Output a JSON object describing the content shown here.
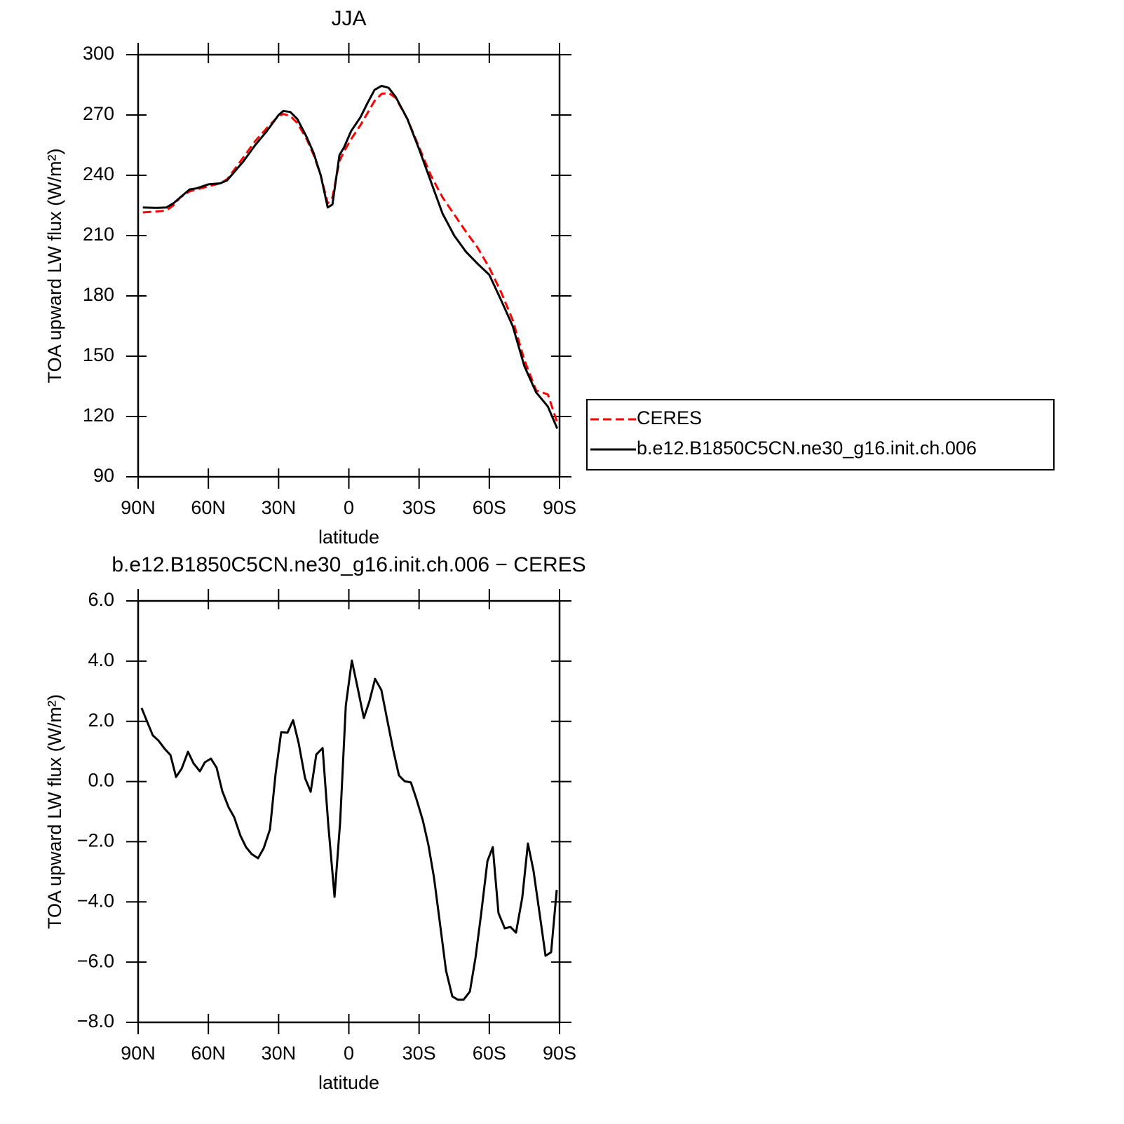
{
  "chart_data": [
    {
      "type": "line",
      "title": "JJA",
      "xlabel": "latitude",
      "ylabel": "TOA upward LW flux (W/m²)",
      "x": [
        88,
        82,
        78,
        75,
        72,
        68,
        65,
        60,
        55,
        52,
        45,
        40,
        35,
        30,
        28,
        25,
        22,
        18,
        15,
        12,
        9,
        7,
        4,
        2,
        -1,
        -5,
        -8,
        -11,
        -14,
        -17,
        -20,
        -25,
        -30,
        -35,
        -40,
        -45,
        -50,
        -55,
        -60,
        -65,
        -70,
        -75,
        -80,
        -85,
        -89
      ],
      "series": [
        {
          "name": "CERES",
          "color": "#ff0000",
          "linestyle": "dashed",
          "values": [
            221.5,
            222,
            222.5,
            225,
            229,
            232,
            233,
            234.5,
            236,
            238,
            249,
            257,
            263.5,
            269.5,
            270.5,
            269.5,
            266,
            258,
            250,
            240,
            226,
            229,
            247,
            252,
            258,
            265,
            271,
            277,
            280.5,
            281,
            278.5,
            268,
            254,
            240,
            229,
            220.5,
            212,
            204,
            194,
            182,
            168,
            148,
            133,
            131,
            117
          ]
        },
        {
          "name": "b.e12.B1850C5CN.ne30_g16.init.ch.006",
          "color": "#000000",
          "linestyle": "solid",
          "values": [
            224,
            223.8,
            224,
            226,
            229,
            233,
            233.5,
            235.5,
            236,
            237.5,
            247,
            255,
            262,
            270,
            272,
            271.5,
            268,
            259,
            251,
            240,
            224,
            225.5,
            250,
            254,
            262,
            269,
            276,
            282.5,
            284.5,
            283.5,
            279,
            268,
            253,
            237,
            221,
            210,
            202,
            196,
            190.5,
            178,
            165,
            145,
            132,
            125,
            114
          ]
        }
      ],
      "xlim": [
        90,
        -90
      ],
      "xticks": [
        {
          "value": 90,
          "label": "90N"
        },
        {
          "value": 60,
          "label": "60N"
        },
        {
          "value": 30,
          "label": "30N"
        },
        0,
        {
          "value": -30,
          "label": "30S"
        },
        {
          "value": -60,
          "label": "60S"
        },
        {
          "value": -90,
          "label": "90S"
        }
      ],
      "ylim": [
        90,
        300
      ],
      "yticks": [
        90,
        120,
        150,
        180,
        210,
        240,
        270,
        300
      ],
      "legend": "right"
    },
    {
      "type": "line",
      "title": "b.e12.B1850C5CN.ne30_g16.init.ch.006 − CERES",
      "xlabel": "latitude",
      "ylabel": "TOA upward LW flux (W/m²)",
      "x": [
        88.5,
        85.8,
        83.7,
        81.3,
        78.6,
        76.2,
        73.8,
        71.4,
        68.7,
        66.3,
        63.6,
        61.5,
        58.9,
        56.5,
        54.1,
        51.4,
        49.0,
        46.3,
        43.9,
        41.5,
        38.8,
        36.4,
        33.7,
        31.3,
        28.9,
        26.2,
        23.8,
        21.4,
        18.7,
        16.3,
        13.9,
        11.2,
        8.8,
        6.1,
        3.7,
        1.3,
        -1.3,
        -3.7,
        -6.4,
        -8.8,
        -11.2,
        -13.9,
        -16.3,
        -19.0,
        -21.4,
        -23.8,
        -26.5,
        -28.9,
        -31.6,
        -34.0,
        -36.4,
        -39.1,
        -41.5,
        -44.2,
        -46.6,
        -49.0,
        -51.7,
        -54.1,
        -56.5,
        -59.2,
        -61.5,
        -63.9,
        -66.6,
        -69.0,
        -71.4,
        -74.1,
        -76.5,
        -78.9,
        -81.6,
        -84.0,
        -86.4,
        -88.8
      ],
      "series": [
        {
          "color": "#000000",
          "linestyle": "solid",
          "values": [
            2.44,
            1.92,
            1.53,
            1.36,
            1.08,
            0.88,
            0.15,
            0.43,
            0.99,
            0.6,
            0.34,
            0.64,
            0.76,
            0.46,
            -0.31,
            -0.85,
            -1.18,
            -1.8,
            -2.18,
            -2.41,
            -2.55,
            -2.22,
            -1.59,
            0.25,
            1.64,
            1.62,
            2.04,
            1.27,
            0.11,
            -0.34,
            0.9,
            1.11,
            -1.41,
            -3.83,
            -1.34,
            2.53,
            4.02,
            3.13,
            2.11,
            2.67,
            3.41,
            3.04,
            2.09,
            1.04,
            0.2,
            0.01,
            -0.03,
            -0.59,
            -1.29,
            -2.11,
            -3.2,
            -4.83,
            -6.28,
            -7.14,
            -7.25,
            -7.25,
            -6.98,
            -5.86,
            -4.41,
            -2.64,
            -2.18,
            -4.37,
            -4.88,
            -4.83,
            -5.02,
            -3.85,
            -2.06,
            -2.97,
            -4.46,
            -5.79,
            -5.67,
            -3.6
          ]
        }
      ],
      "xlim": [
        90,
        -90
      ],
      "xticks": [
        {
          "value": 90,
          "label": "90N"
        },
        {
          "value": 60,
          "label": "60N"
        },
        {
          "value": 30,
          "label": "30N"
        },
        0,
        {
          "value": -30,
          "label": "30S"
        },
        {
          "value": -60,
          "label": "60S"
        },
        {
          "value": -90,
          "label": "90S"
        }
      ],
      "ylim": [
        -8,
        6
      ],
      "yticks": [
        {
          "value": -8,
          "label": "−8.0"
        },
        {
          "value": -6,
          "label": "−6.0"
        },
        {
          "value": -4,
          "label": "−4.0"
        },
        {
          "value": -2,
          "label": "−2.0"
        },
        {
          "value": 0,
          "label": "0.0"
        },
        {
          "value": 2,
          "label": "2.0"
        },
        {
          "value": 4,
          "label": "4.0"
        },
        {
          "value": 6,
          "label": "6.0"
        }
      ]
    }
  ]
}
